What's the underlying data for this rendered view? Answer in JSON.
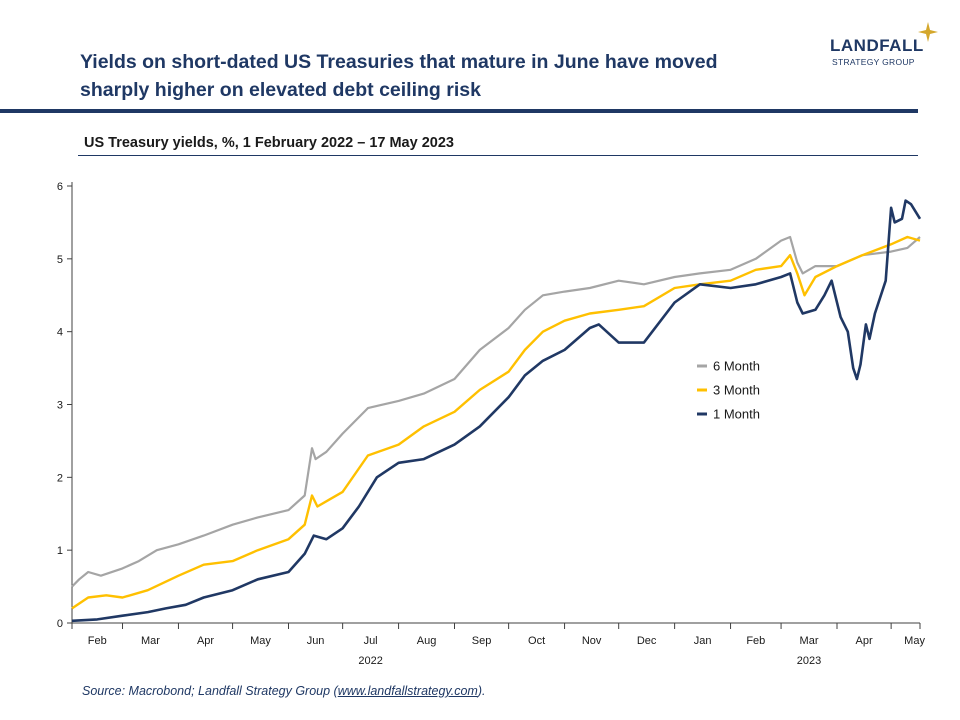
{
  "title_line1": "Yields on short-dated US Treasuries that mature in June have moved",
  "title_line2": "sharply higher on elevated debt ceiling risk",
  "logo": {
    "name": "LANDFALL",
    "sub": "STRATEGY GROUP",
    "icon": "star-sparkle-icon"
  },
  "subtitle": "US Treasury yields, %, 1 February 2022 – 17 May 2023",
  "source_prefix": "Source: Macrobond; Landfall Strategy Group (",
  "source_link": "www.landfallstrategy.com",
  "source_suffix": ").",
  "colors": {
    "navy": "#1f3864",
    "six_month": "#a5a5a5",
    "three_month": "#ffc000",
    "one_month": "#203864",
    "axis": "#404040"
  },
  "chart_data": {
    "type": "line",
    "x_range": [
      "2022-02-01",
      "2023-05-17"
    ],
    "ylim": [
      0,
      6
    ],
    "yticks": [
      "0",
      "1",
      "2",
      "3",
      "4",
      "5",
      "6"
    ],
    "xtick_labels": [
      "Feb",
      "Mar",
      "Apr",
      "May",
      "Jun",
      "Jul",
      "Aug",
      "Sep",
      "Oct",
      "Nov",
      "Dec",
      "Jan",
      "Feb",
      "Mar",
      "Apr",
      "May"
    ],
    "year_labels": [
      {
        "label": "2022",
        "under": "Jul"
      },
      {
        "label": "2023",
        "under": "Mar"
      }
    ],
    "grid": false,
    "legend_position": "center-right",
    "series": [
      {
        "name": "6 Month",
        "color": "#a5a5a5",
        "points": [
          [
            "2022-02-01",
            0.5
          ],
          [
            "2022-02-05",
            0.6
          ],
          [
            "2022-02-10",
            0.7
          ],
          [
            "2022-02-17",
            0.65
          ],
          [
            "2022-03-01",
            0.75
          ],
          [
            "2022-03-10",
            0.85
          ],
          [
            "2022-03-20",
            1.0
          ],
          [
            "2022-04-01",
            1.08
          ],
          [
            "2022-04-15",
            1.2
          ],
          [
            "2022-05-01",
            1.35
          ],
          [
            "2022-05-15",
            1.45
          ],
          [
            "2022-06-01",
            1.55
          ],
          [
            "2022-06-10",
            1.75
          ],
          [
            "2022-06-14",
            2.4
          ],
          [
            "2022-06-16",
            2.25
          ],
          [
            "2022-06-22",
            2.35
          ],
          [
            "2022-07-01",
            2.6
          ],
          [
            "2022-07-15",
            2.95
          ],
          [
            "2022-08-01",
            3.05
          ],
          [
            "2022-08-15",
            3.15
          ],
          [
            "2022-09-01",
            3.35
          ],
          [
            "2022-09-15",
            3.75
          ],
          [
            "2022-10-01",
            4.05
          ],
          [
            "2022-10-10",
            4.3
          ],
          [
            "2022-10-20",
            4.5
          ],
          [
            "2022-11-01",
            4.55
          ],
          [
            "2022-11-15",
            4.6
          ],
          [
            "2022-12-01",
            4.7
          ],
          [
            "2022-12-15",
            4.65
          ],
          [
            "2023-01-01",
            4.75
          ],
          [
            "2023-01-15",
            4.8
          ],
          [
            "2023-02-01",
            4.85
          ],
          [
            "2023-02-15",
            5.0
          ],
          [
            "2023-03-01",
            5.25
          ],
          [
            "2023-03-06",
            5.3
          ],
          [
            "2023-03-10",
            4.95
          ],
          [
            "2023-03-13",
            4.8
          ],
          [
            "2023-03-20",
            4.9
          ],
          [
            "2023-04-01",
            4.9
          ],
          [
            "2023-04-15",
            5.05
          ],
          [
            "2023-05-01",
            5.1
          ],
          [
            "2023-05-10",
            5.15
          ],
          [
            "2023-05-17",
            5.3
          ]
        ]
      },
      {
        "name": "3 Month",
        "color": "#ffc000",
        "points": [
          [
            "2022-02-01",
            0.2
          ],
          [
            "2022-02-10",
            0.35
          ],
          [
            "2022-02-20",
            0.38
          ],
          [
            "2022-03-01",
            0.35
          ],
          [
            "2022-03-15",
            0.45
          ],
          [
            "2022-04-01",
            0.65
          ],
          [
            "2022-04-15",
            0.8
          ],
          [
            "2022-05-01",
            0.85
          ],
          [
            "2022-05-15",
            1.0
          ],
          [
            "2022-06-01",
            1.15
          ],
          [
            "2022-06-10",
            1.35
          ],
          [
            "2022-06-14",
            1.75
          ],
          [
            "2022-06-17",
            1.6
          ],
          [
            "2022-06-24",
            1.7
          ],
          [
            "2022-07-01",
            1.8
          ],
          [
            "2022-07-15",
            2.3
          ],
          [
            "2022-08-01",
            2.45
          ],
          [
            "2022-08-15",
            2.7
          ],
          [
            "2022-09-01",
            2.9
          ],
          [
            "2022-09-15",
            3.2
          ],
          [
            "2022-10-01",
            3.45
          ],
          [
            "2022-10-10",
            3.75
          ],
          [
            "2022-10-20",
            4.0
          ],
          [
            "2022-11-01",
            4.15
          ],
          [
            "2022-11-15",
            4.25
          ],
          [
            "2022-12-01",
            4.3
          ],
          [
            "2022-12-15",
            4.35
          ],
          [
            "2023-01-01",
            4.6
          ],
          [
            "2023-01-15",
            4.65
          ],
          [
            "2023-02-01",
            4.7
          ],
          [
            "2023-02-15",
            4.85
          ],
          [
            "2023-03-01",
            4.9
          ],
          [
            "2023-03-06",
            5.05
          ],
          [
            "2023-03-10",
            4.8
          ],
          [
            "2023-03-14",
            4.5
          ],
          [
            "2023-03-20",
            4.75
          ],
          [
            "2023-04-01",
            4.9
          ],
          [
            "2023-04-15",
            5.05
          ],
          [
            "2023-05-01",
            5.2
          ],
          [
            "2023-05-10",
            5.3
          ],
          [
            "2023-05-17",
            5.25
          ]
        ]
      },
      {
        "name": "1 Month",
        "color": "#203864",
        "points": [
          [
            "2022-02-01",
            0.03
          ],
          [
            "2022-02-15",
            0.05
          ],
          [
            "2022-03-01",
            0.1
          ],
          [
            "2022-03-15",
            0.15
          ],
          [
            "2022-03-25",
            0.2
          ],
          [
            "2022-04-05",
            0.25
          ],
          [
            "2022-04-15",
            0.35
          ],
          [
            "2022-05-01",
            0.45
          ],
          [
            "2022-05-15",
            0.6
          ],
          [
            "2022-06-01",
            0.7
          ],
          [
            "2022-06-10",
            0.95
          ],
          [
            "2022-06-15",
            1.2
          ],
          [
            "2022-06-22",
            1.15
          ],
          [
            "2022-07-01",
            1.3
          ],
          [
            "2022-07-10",
            1.6
          ],
          [
            "2022-07-20",
            2.0
          ],
          [
            "2022-08-01",
            2.2
          ],
          [
            "2022-08-15",
            2.25
          ],
          [
            "2022-09-01",
            2.45
          ],
          [
            "2022-09-15",
            2.7
          ],
          [
            "2022-10-01",
            3.1
          ],
          [
            "2022-10-10",
            3.4
          ],
          [
            "2022-10-20",
            3.6
          ],
          [
            "2022-11-01",
            3.75
          ],
          [
            "2022-11-15",
            4.05
          ],
          [
            "2022-11-20",
            4.1
          ],
          [
            "2022-12-01",
            3.85
          ],
          [
            "2022-12-15",
            3.85
          ],
          [
            "2023-01-01",
            4.4
          ],
          [
            "2023-01-15",
            4.65
          ],
          [
            "2023-02-01",
            4.6
          ],
          [
            "2023-02-15",
            4.65
          ],
          [
            "2023-03-01",
            4.75
          ],
          [
            "2023-03-06",
            4.8
          ],
          [
            "2023-03-10",
            4.4
          ],
          [
            "2023-03-13",
            4.25
          ],
          [
            "2023-03-20",
            4.3
          ],
          [
            "2023-03-25",
            4.5
          ],
          [
            "2023-03-29",
            4.7
          ],
          [
            "2023-04-03",
            4.2
          ],
          [
            "2023-04-07",
            4.0
          ],
          [
            "2023-04-10",
            3.5
          ],
          [
            "2023-04-12",
            3.35
          ],
          [
            "2023-04-14",
            3.55
          ],
          [
            "2023-04-17",
            4.1
          ],
          [
            "2023-04-19",
            3.9
          ],
          [
            "2023-04-22",
            4.25
          ],
          [
            "2023-04-26",
            4.55
          ],
          [
            "2023-04-28",
            4.7
          ],
          [
            "2023-05-01",
            5.7
          ],
          [
            "2023-05-03",
            5.5
          ],
          [
            "2023-05-07",
            5.55
          ],
          [
            "2023-05-09",
            5.8
          ],
          [
            "2023-05-12",
            5.75
          ],
          [
            "2023-05-17",
            5.55
          ]
        ]
      }
    ]
  }
}
